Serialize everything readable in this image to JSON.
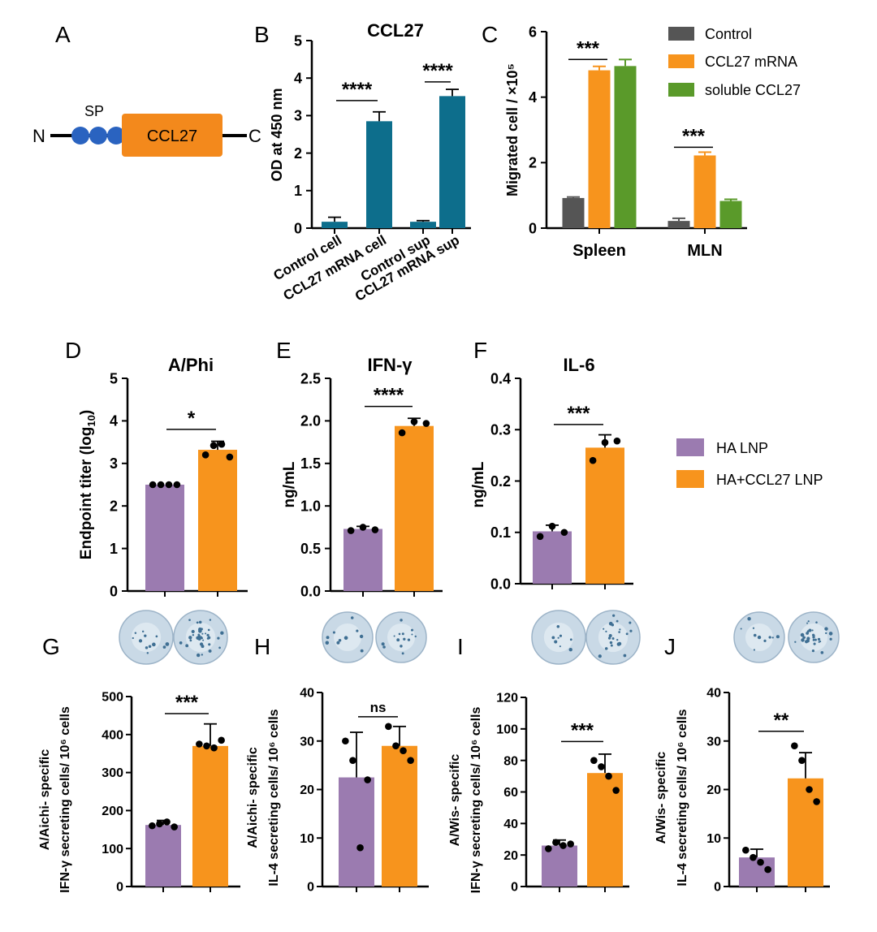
{
  "panelA": {
    "letter": "A",
    "sp_label": "SP",
    "n_label": "N",
    "c_label": "C",
    "box_label": "CCL27",
    "colors": {
      "sp": "#2a63c0",
      "box": "#f3891c"
    }
  },
  "colors": {
    "teal": "#0d6e8c",
    "gray": "#555555",
    "orange": "#f7941d",
    "green": "#5a9a2a",
    "purple": "#9b7bb0"
  },
  "legendC": [
    "Control",
    "CCL27 mRNA",
    "soluble CCL27"
  ],
  "legendDF": [
    "HA LNP",
    "HA+CCL27 LNP"
  ],
  "chart_data": [
    {
      "id": "B",
      "letter": "B",
      "type": "bar",
      "title": "CCL27",
      "ylabel": "OD at 450 nm",
      "ylim": [
        0,
        5
      ],
      "yticks": [
        "0",
        "1",
        "2",
        "3",
        "4",
        "5"
      ],
      "categories": [
        "Control cell",
        "CCL27 mRNA cell",
        "Control sup",
        "CCL27 mRNA sup"
      ],
      "values": [
        0.17,
        2.85,
        0.17,
        3.52
      ],
      "errors": [
        0.12,
        0.25,
        0.03,
        0.18
      ],
      "significance": [
        {
          "label": "****",
          "from": 0,
          "to": 1,
          "y": 3.4
        },
        {
          "label": "****",
          "from": 2,
          "to": 3,
          "y": 3.9
        }
      ]
    },
    {
      "id": "C",
      "letter": "C",
      "type": "bar",
      "title": "",
      "ylabel": "Migrated cell / ×10⁵",
      "ylim": [
        0,
        6
      ],
      "yticks": [
        "0",
        "2",
        "4",
        "6"
      ],
      "categories": [
        "Spleen",
        "MLN"
      ],
      "series": [
        {
          "name": "Control",
          "values": [
            0.92,
            0.22
          ],
          "errors": [
            0.03,
            0.08
          ]
        },
        {
          "name": "CCL27 mRNA",
          "values": [
            4.82,
            2.22
          ],
          "errors": [
            0.12,
            0.1
          ]
        },
        {
          "name": "soluble CCL27",
          "values": [
            4.95,
            0.83
          ],
          "errors": [
            0.2,
            0.05
          ]
        }
      ],
      "significance": [
        {
          "label": "***",
          "category": 0,
          "y": 5.15
        },
        {
          "label": "***",
          "category": 1,
          "y": 2.47
        }
      ]
    },
    {
      "id": "D",
      "letter": "D",
      "type": "bar",
      "title": "A/Phi",
      "ylabel": "Endpoint titer (log10)",
      "ylim": [
        0,
        5
      ],
      "yticks": [
        "0",
        "1",
        "2",
        "3",
        "4",
        "5"
      ],
      "categories": [
        "HA LNP",
        "HA+CCL27 LNP"
      ],
      "values": [
        2.5,
        3.32
      ],
      "errors": [
        0.0,
        0.2
      ],
      "points": [
        [
          2.5,
          2.5,
          2.5,
          2.5
        ],
        [
          3.2,
          3.42,
          3.45,
          3.15
        ]
      ],
      "significance": [
        {
          "label": "*",
          "from": 0,
          "to": 1,
          "y": 3.8
        }
      ]
    },
    {
      "id": "E",
      "letter": "E",
      "type": "bar",
      "title": "IFN-γ",
      "ylabel": "ng/mL",
      "ylim": [
        0,
        2.5
      ],
      "yticks": [
        "0.0",
        "0.5",
        "1.0",
        "1.5",
        "2.0",
        "2.5"
      ],
      "categories": [
        "HA LNP",
        "HA+CCL27 LNP"
      ],
      "values": [
        0.73,
        1.94
      ],
      "errors": [
        0.03,
        0.09
      ],
      "points": [
        [
          0.71,
          0.75,
          0.72
        ],
        [
          1.86,
          1.99,
          1.97
        ]
      ],
      "significance": [
        {
          "label": "****",
          "from": 0,
          "to": 1,
          "y": 2.17
        }
      ]
    },
    {
      "id": "F",
      "letter": "F",
      "type": "bar",
      "title": "IL-6",
      "ylabel": "ng/mL",
      "ylim": [
        0,
        0.4
      ],
      "yticks": [
        "0.0",
        "0.1",
        "0.2",
        "0.3",
        "0.4"
      ],
      "categories": [
        "HA LNP",
        "HA+CCL27 LNP"
      ],
      "values": [
        0.102,
        0.265
      ],
      "errors": [
        0.012,
        0.025
      ],
      "points": [
        [
          0.092,
          0.112,
          0.1
        ],
        [
          0.24,
          0.275,
          0.278
        ]
      ],
      "significance": [
        {
          "label": "***",
          "from": 0,
          "to": 1,
          "y": 0.31
        }
      ]
    },
    {
      "id": "G",
      "letter": "G",
      "type": "bar",
      "title": "",
      "ylabel": [
        "A/Aichi- specific",
        "IFN-γ secreting cells/ 10⁶ cells"
      ],
      "ylim": [
        0,
        500
      ],
      "yticks": [
        "0",
        "100",
        "200",
        "300",
        "400",
        "500"
      ],
      "categories": [
        "HA LNP",
        "HA+CCL27 LNP"
      ],
      "values": [
        162,
        370
      ],
      "errors": [
        12,
        58
      ],
      "points": [
        [
          160,
          165,
          170,
          157
        ],
        [
          375,
          370,
          365,
          385
        ]
      ],
      "significance": [
        {
          "label": "***",
          "from": 0,
          "to": 1,
          "y": 455
        }
      ]
    },
    {
      "id": "H",
      "letter": "H",
      "type": "bar",
      "title": "",
      "ylabel": [
        "A/Aichi- specific",
        "IL-4 secreting cells/ 10⁶ cells"
      ],
      "ylim": [
        0,
        40
      ],
      "yticks": [
        "0",
        "10",
        "20",
        "30",
        "40"
      ],
      "categories": [
        "HA LNP",
        "HA+CCL27 LNP"
      ],
      "values": [
        22.5,
        29
      ],
      "errors": [
        9.3,
        4
      ],
      "points": [
        [
          30,
          26,
          8,
          22
        ],
        [
          33,
          29,
          28,
          26
        ]
      ],
      "significance": [
        {
          "label": "ns",
          "from": 0,
          "to": 1,
          "y": 35
        }
      ]
    },
    {
      "id": "I",
      "letter": "I",
      "type": "bar",
      "title": "",
      "ylabel": [
        "A/Wis- specific",
        "IFN-γ secreting cells/ 10⁶ cells"
      ],
      "ylim": [
        0,
        120
      ],
      "yticks": [
        "0",
        "20",
        "40",
        "60",
        "80",
        "100",
        "120"
      ],
      "categories": [
        "HA LNP",
        "HA+CCL27 LNP"
      ],
      "values": [
        26,
        72
      ],
      "errors": [
        3.5,
        12
      ],
      "points": [
        [
          24,
          28,
          26,
          27
        ],
        [
          80,
          76,
          70,
          61
        ]
      ],
      "significance": [
        {
          "label": "***",
          "from": 0,
          "to": 1,
          "y": 92
        }
      ]
    },
    {
      "id": "J",
      "letter": "J",
      "type": "bar",
      "title": "",
      "ylabel": [
        "A/Wis- specific",
        "IL-4 secreting cells/ 10⁶ cells"
      ],
      "ylim": [
        0,
        40
      ],
      "yticks": [
        "0",
        "10",
        "20",
        "30",
        "40"
      ],
      "categories": [
        "HA LNP",
        "HA+CCL27 LNP"
      ],
      "values": [
        6,
        22.3
      ],
      "errors": [
        1.7,
        5.3
      ],
      "points": [
        [
          7.5,
          6,
          5,
          3.5
        ],
        [
          29,
          26,
          20,
          17.5
        ]
      ],
      "significance": [
        {
          "label": "**",
          "from": 0,
          "to": 1,
          "y": 32
        }
      ]
    }
  ]
}
